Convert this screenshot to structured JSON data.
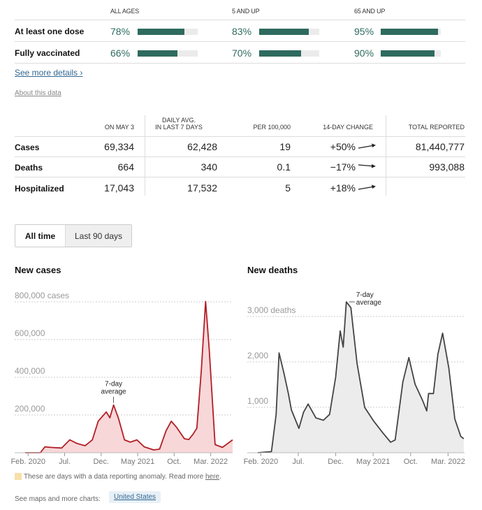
{
  "vaccination": {
    "columns": [
      "ALL AGES",
      "5 AND UP",
      "65 AND UP"
    ],
    "rows": [
      {
        "label": "At least one dose",
        "values": [
          "78%",
          "83%",
          "95%"
        ],
        "fractions": [
          0.78,
          0.83,
          0.95
        ]
      },
      {
        "label": "Fully vaccinated",
        "values": [
          "66%",
          "70%",
          "90%"
        ],
        "fractions": [
          0.66,
          0.7,
          0.9
        ]
      }
    ],
    "see_more": "See more details ›",
    "about": "About this data",
    "bar_color": "#2e6b5e"
  },
  "stats": {
    "headers": [
      "ON MAY 3",
      "DAILY AVG.",
      "IN LAST 7 DAYS",
      "PER 100,000",
      "14-DAY CHANGE",
      "TOTAL REPORTED"
    ],
    "rows": [
      {
        "label": "Cases",
        "on_day": "69,334",
        "daily_avg": "62,428",
        "per_100k": "19",
        "change": "+50%",
        "trend": "up",
        "total": "81,440,777"
      },
      {
        "label": "Deaths",
        "on_day": "664",
        "daily_avg": "340",
        "per_100k": "0.1",
        "change": "−17%",
        "trend": "down",
        "total": "993,088"
      },
      {
        "label": "Hospitalized",
        "on_day": "17,043",
        "daily_avg": "17,532",
        "per_100k": "5",
        "change": "+18%",
        "trend": "up",
        "total": ""
      }
    ]
  },
  "toggle": {
    "options": [
      "All time",
      "Last 90 days"
    ],
    "selected": 0
  },
  "chart_data": [
    {
      "type": "area",
      "title": "New cases",
      "x_unit": "months since Jan 1 2020",
      "xlim": [
        0.5,
        29
      ],
      "ylim": [
        0,
        800000
      ],
      "yticks": [
        200000,
        400000,
        600000,
        800000
      ],
      "ytick_labels": [
        "200,000",
        "400,000",
        "600,000",
        "800,000 cases"
      ],
      "xticks": [
        1,
        6,
        11,
        16,
        21,
        26
      ],
      "xtick_labels": [
        "Feb. 2020",
        "Jul.",
        "Dec.",
        "May 2021",
        "Oct.",
        "Mar. 2022"
      ],
      "annotation": {
        "text": [
          "7-day",
          "average"
        ],
        "x": 12.7,
        "y": 253000
      },
      "line_color": "#b11f25",
      "fill_color": "#f8d7d9",
      "grid": true,
      "x": [
        0.58,
        2.68,
        3.3,
        4.1,
        5.6,
        6.7,
        7.7,
        8.8,
        9.8,
        10.6,
        11.7,
        12.2,
        12.7,
        13.4,
        14.2,
        15.0,
        15.9,
        16.9,
        18.2,
        19.0,
        19.9,
        20.6,
        21.3,
        22.4,
        23.0,
        23.6,
        24.1,
        24.7,
        25.3,
        25.8,
        26.6,
        27.6,
        29.0
      ],
      "y": [
        0,
        0,
        31000,
        28000,
        25000,
        68000,
        49000,
        37000,
        68000,
        167000,
        216000,
        185000,
        253000,
        179000,
        68000,
        56000,
        68000,
        31000,
        15000,
        19000,
        117000,
        167000,
        136000,
        74000,
        70000,
        99000,
        130000,
        426000,
        802000,
        549000,
        43000,
        28000,
        68000
      ]
    },
    {
      "type": "area",
      "title": "New deaths",
      "x_unit": "months since Jan 1 2020",
      "xlim": [
        0.5,
        28.2
      ],
      "ylim": [
        0,
        3000
      ],
      "yticks": [
        1000,
        2000,
        3000
      ],
      "ytick_labels": [
        "1,000",
        "2,000",
        "3,000 deaths"
      ],
      "xticks": [
        1,
        6,
        11,
        16,
        21,
        26
      ],
      "xtick_labels": [
        "Feb. 2020",
        "Jul.",
        "Dec.",
        "May 2021",
        "Oct.",
        "Mar. 2022"
      ],
      "annotation": {
        "text": [
          "7-day",
          "average"
        ],
        "x": 12.42,
        "y": 3322
      },
      "line_color": "#444444",
      "fill_color": "#ececec",
      "grid": true,
      "x": [
        0.59,
        2.42,
        3.05,
        3.44,
        4.07,
        4.68,
        5.08,
        6.09,
        6.71,
        7.32,
        8.35,
        9.36,
        10.18,
        10.99,
        11.6,
        12.0,
        12.42,
        13.03,
        13.85,
        14.87,
        16.09,
        17.31,
        18.33,
        18.94,
        19.96,
        20.77,
        21.6,
        22.6,
        23.15,
        23.4,
        24.05,
        24.65,
        25.27,
        26.1,
        26.9,
        27.7,
        28.1
      ],
      "y": [
        0,
        25,
        843,
        2197,
        1763,
        1303,
        945,
        537,
        894,
        1073,
        766,
        715,
        843,
        1661,
        2683,
        2325,
        3322,
        3194,
        1967,
        996,
        690,
        434,
        230,
        281,
        1559,
        2095,
        1507,
        1150,
        920,
        1303,
        1303,
        2172,
        2632,
        1865,
        741,
        358,
        307
      ]
    }
  ],
  "footer": {
    "anomaly_note": "These are days with a data reporting anomaly. Read more ",
    "anomaly_link": "here",
    "anomaly_end": ".",
    "anomaly_color": "#f9dfa8",
    "maps_label": "See maps and more charts:",
    "maps_link": "United States"
  }
}
